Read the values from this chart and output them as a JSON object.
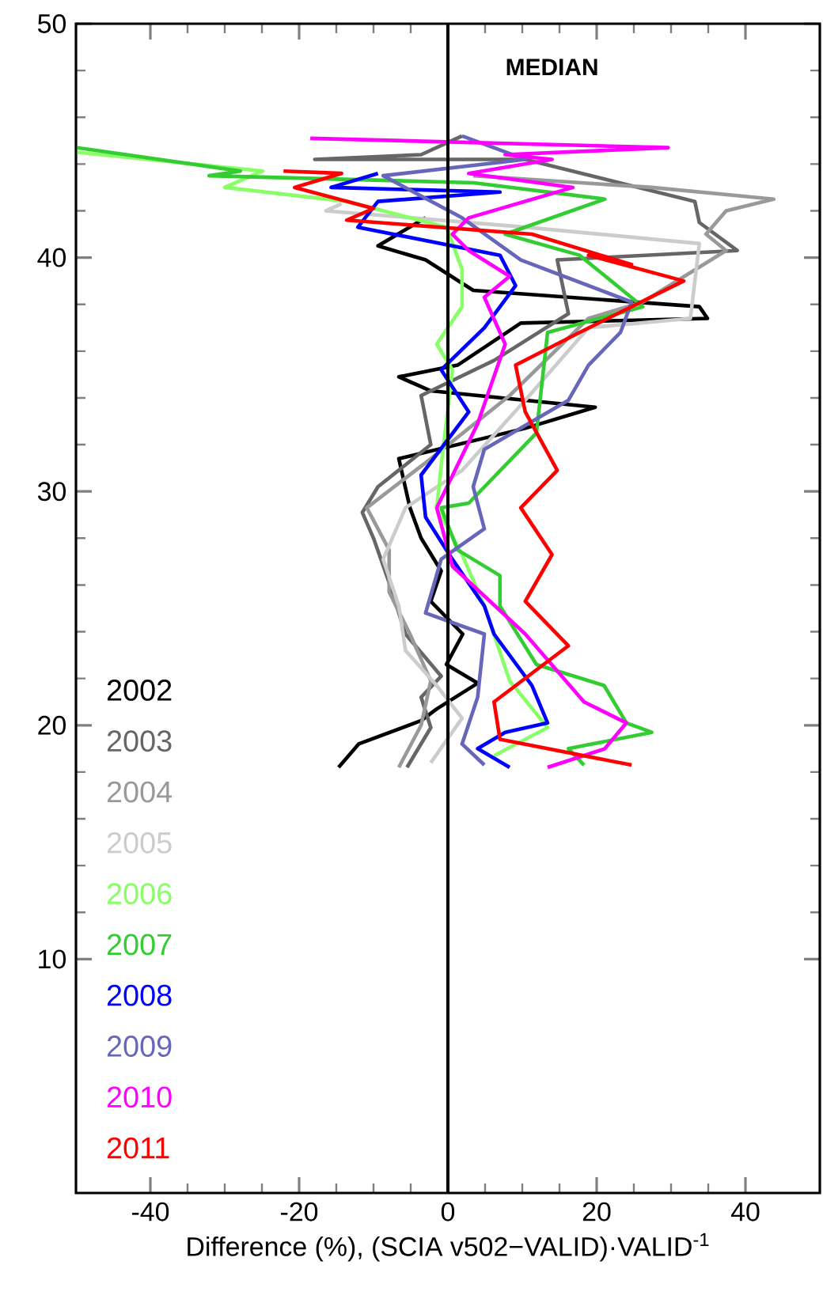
{
  "chart_data": {
    "type": "line",
    "xlabel": "Difference (%), (SCIA v502−VALID)·VALID$^{-1}$",
    "xlim": [
      -50,
      50
    ],
    "xticks": [
      -40,
      -20,
      0,
      20,
      40
    ],
    "ylim": [
      0,
      50
    ],
    "yticks": [
      10,
      20,
      30,
      40,
      50
    ],
    "legend": "bottom left",
    "annotations": [
      "MEDIAN"
    ],
    "ref_lines": [
      {
        "axis": "x",
        "value": 0
      }
    ],
    "series": [
      {
        "name": "2002",
        "color": "#000000",
        "x": [
          -14.7,
          -12,
          -3.6,
          -1.5,
          4,
          -0.2,
          2,
          -2.3,
          -0.9,
          -3.6,
          -5.1,
          -6.6,
          10.4,
          19.8,
          -2.3,
          -6.6,
          1.3,
          9.8,
          34.9,
          33.8,
          3.4,
          -3,
          -9.4,
          -3
        ],
        "values": [
          18.2,
          19.2,
          20.2,
          20.7,
          21.8,
          22.6,
          23.9,
          25.3,
          26.6,
          28,
          29.3,
          31.4,
          32.7,
          33.6,
          34.3,
          34.9,
          35.4,
          37.2,
          37.4,
          37.9,
          38.6,
          39.9,
          40.5,
          41.7
        ]
      },
      {
        "name": "2003",
        "color": "#666666",
        "x": [
          -5.5,
          -2.3,
          -3.6,
          -0.9,
          -5.7,
          -7.9,
          -10,
          -11.5,
          -9.4,
          -2.3,
          -3.6,
          6.2,
          16.2,
          14.7,
          38.9,
          33.8,
          33.2,
          10.4,
          -17.9,
          -3.6,
          1.9
        ],
        "values": [
          18.2,
          19.9,
          21.2,
          22.1,
          23.9,
          26.1,
          28,
          29.1,
          30.2,
          32,
          34.1,
          35.6,
          37.6,
          39.9,
          40.3,
          41.5,
          42.4,
          44.2,
          44.2,
          44.4,
          45.2
        ]
      },
      {
        "name": "2004",
        "color": "#999999",
        "x": [
          -6.6,
          -3.6,
          -2.3,
          -5.1,
          -7.9,
          -7.9,
          -10.9,
          -2.3,
          8.3,
          18.9,
          26.2,
          37.4,
          34.7,
          37.4,
          43.8,
          27.4,
          3.4
        ],
        "values": [
          18.2,
          20,
          21.9,
          23.9,
          25.7,
          27.5,
          29.3,
          31.4,
          34.1,
          37.4,
          38.1,
          40.3,
          41,
          42,
          42.5,
          43,
          43.5
        ]
      },
      {
        "name": "2005",
        "color": "#cccccc",
        "x": [
          -2.3,
          1.9,
          -1.5,
          -5.7,
          -6.6,
          -8.7,
          -5.7,
          1.9,
          10.4,
          18.9,
          32.6,
          33.8,
          10.4,
          -16.4,
          -14.3
        ],
        "values": [
          18.4,
          20.3,
          21.7,
          23.2,
          25.1,
          27.1,
          29.3,
          30.9,
          33.9,
          37,
          37.4,
          40.6,
          41.3,
          42,
          42.3
        ]
      },
      {
        "name": "2006",
        "color": "#88ff66",
        "x": [
          6.2,
          13.4,
          8.3,
          4.9,
          1.9,
          -1.5,
          -0.9,
          0.6,
          -1.5,
          1.9,
          1.9,
          -0.2,
          -13.6,
          -30,
          -24.9,
          -49.8
        ],
        "values": [
          18.7,
          19.9,
          21.9,
          25.1,
          27.3,
          29.3,
          31.1,
          35.2,
          36.3,
          37.9,
          39.5,
          41.3,
          42.4,
          43,
          43.7,
          44.5
        ]
      },
      {
        "name": "2007",
        "color": "#33cc33",
        "x": [
          18.3,
          16.2,
          27.4,
          24,
          21,
          11.9,
          7,
          7,
          1.3,
          -0.9,
          2.8,
          11.9,
          13.4,
          26.2,
          17.7,
          7.7,
          21.1,
          3.4,
          -32.1,
          -27.9,
          -49.8
        ],
        "values": [
          18.3,
          19,
          19.7,
          20.1,
          21.7,
          22.6,
          25.1,
          26.4,
          27.5,
          29.3,
          29.5,
          32.5,
          36.8,
          37.9,
          40.1,
          41,
          42.5,
          43.2,
          43.5,
          43.7,
          44.7
        ]
      },
      {
        "name": "2008",
        "color": "#0000ff",
        "x": [
          8.3,
          4,
          7.7,
          13.4,
          11.3,
          6.2,
          4.9,
          0.6,
          -3,
          -3.6,
          2.8,
          -0.9,
          4.9,
          9.1,
          7,
          -12.1,
          -9.4,
          7,
          -15.7,
          -9.4
        ],
        "values": [
          18.2,
          19,
          19.7,
          20.1,
          21.7,
          23.9,
          25.1,
          27.1,
          28.9,
          30.7,
          33.4,
          35.2,
          37,
          38.8,
          40.1,
          41.3,
          42.4,
          42.8,
          43,
          43.6
        ]
      },
      {
        "name": "2009",
        "color": "#6666bb",
        "x": [
          4.9,
          1.9,
          4,
          4.9,
          -3,
          -0.9,
          4.9,
          3.4,
          4.9,
          16.2,
          18.9,
          23.2,
          24.7,
          9.8,
          1.9,
          -8.7,
          10.4,
          1.9
        ],
        "values": [
          18.3,
          19.2,
          21.2,
          23.9,
          24.8,
          27.1,
          28.4,
          30.2,
          31.8,
          33.9,
          35.4,
          36.8,
          38.1,
          39.9,
          41.7,
          43.5,
          44.2,
          45.2
        ]
      },
      {
        "name": "2010",
        "color": "#ff00ff",
        "x": [
          13.4,
          21.1,
          24,
          18.3,
          10.4,
          0.6,
          -1.5,
          4,
          7.7,
          4.9,
          8.3,
          2.8,
          0.6,
          2.8,
          16.8,
          2.8,
          14,
          7.7,
          29.6,
          -18.5
        ],
        "values": [
          18.2,
          19,
          20.1,
          21,
          23.9,
          26.8,
          29.3,
          32.9,
          36.3,
          38.3,
          39.2,
          40.3,
          41,
          41.7,
          43,
          43.6,
          44.2,
          44.4,
          44.7,
          45.1
        ]
      },
      {
        "name": "2011",
        "color": "#ff0000",
        "x": [
          24.7,
          7,
          6.2,
          16.2,
          10.4,
          14,
          9.8,
          14.7,
          10.4,
          9.1,
          17.7,
          31.7,
          18.9,
          24.7,
          11.3,
          -13.6,
          -10,
          -20.6,
          -14.3,
          -22.1
        ],
        "values": [
          18.3,
          19.4,
          21,
          23.4,
          25.3,
          27.3,
          29.3,
          30.9,
          33.4,
          35.4,
          36.8,
          39,
          40.1,
          39.7,
          41,
          41.6,
          42.1,
          43,
          43.6,
          43.7
        ]
      }
    ]
  }
}
